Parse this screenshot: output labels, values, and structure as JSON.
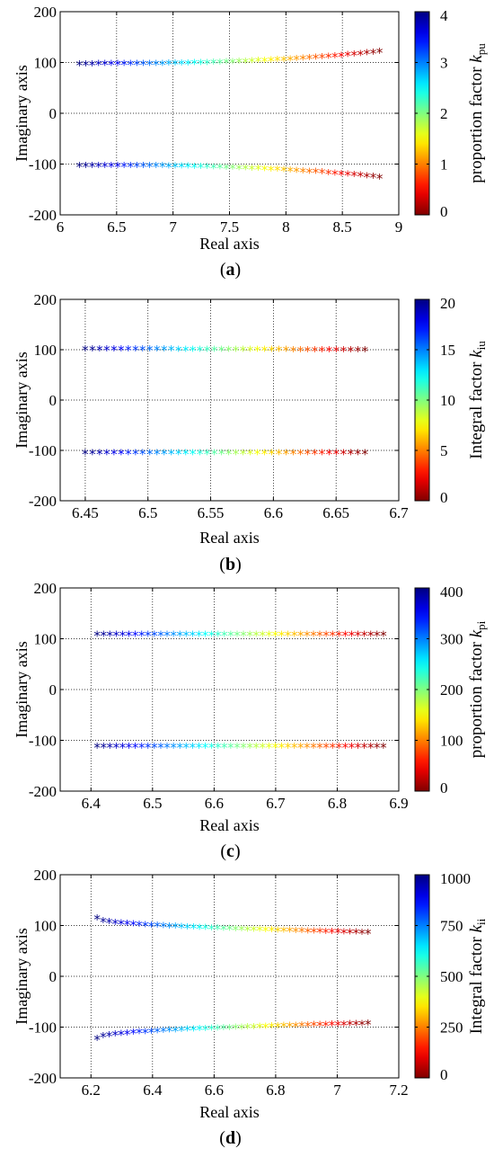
{
  "colormap": "jet",
  "colormap_stops": [
    "#00008f",
    "#0000ff",
    "#00ffff",
    "#ffff00",
    "#ff0000",
    "#800000"
  ],
  "chart_data": [
    {
      "type": "scatter",
      "panel_label": "(a)",
      "panel_letter": "a",
      "xlabel": "Real axis",
      "ylabel": "Imaginary axis",
      "xlim": [
        6,
        9
      ],
      "ylim": [
        -200,
        200
      ],
      "xticks": [
        "6",
        "6.5",
        "7",
        "7.5",
        "8",
        "8.5",
        "9"
      ],
      "yticks": [
        "200",
        "100",
        "0",
        "-100",
        "-200"
      ],
      "grid": true,
      "marker": "*",
      "colorbar": {
        "label_prefix": "proportion factor ",
        "symbol": "k",
        "subscript": "pu",
        "range": [
          0,
          4
        ],
        "ticks": [
          "4",
          "3",
          "2",
          "1",
          "0"
        ]
      },
      "series": [
        {
          "x_start": 6.17,
          "x_end": 8.83,
          "count": 48,
          "shape": 2.6,
          "y_start": 96,
          "y_end": 120,
          "param_start": 4,
          "param_end": 0
        },
        {
          "x_start": 6.17,
          "x_end": 8.83,
          "count": 48,
          "shape": 2.6,
          "y_start": -104,
          "y_end": -127,
          "param_start": 4,
          "param_end": 0
        }
      ]
    },
    {
      "type": "scatter",
      "panel_label": "(b)",
      "panel_letter": "b",
      "xlabel": "Real axis",
      "ylabel": "Imaginary axis",
      "xlim": [
        6.43,
        6.7
      ],
      "ylim": [
        -200,
        200
      ],
      "xticks": [
        "6.45",
        "6.5",
        "6.55",
        "6.6",
        "6.65",
        "6.7"
      ],
      "yticks": [
        "200",
        "100",
        "0",
        "-100",
        "-200"
      ],
      "grid": true,
      "marker": "*",
      "colorbar": {
        "label_prefix": "Integral factor ",
        "symbol": "k",
        "subscript": "iu",
        "range": [
          0,
          20
        ],
        "ticks": [
          "20",
          "15",
          "10",
          "5",
          "0"
        ]
      },
      "series": [
        {
          "x_start": 6.45,
          "x_end": 6.673,
          "count": 40,
          "shape": 1.3,
          "y_start": 100,
          "y_end": 98,
          "param_start": 20,
          "param_end": 0
        },
        {
          "x_start": 6.45,
          "x_end": 6.673,
          "count": 40,
          "shape": 1.3,
          "y_start": -106,
          "y_end": -106,
          "param_start": 20,
          "param_end": 0
        }
      ]
    },
    {
      "type": "scatter",
      "panel_label": "(c)",
      "panel_letter": "c",
      "xlabel": "Real axis",
      "ylabel": "Imaginary axis",
      "xlim": [
        6.35,
        6.9
      ],
      "ylim": [
        -200,
        200
      ],
      "xticks": [
        "6.4",
        "6.5",
        "6.6",
        "6.7",
        "6.8",
        "6.9"
      ],
      "yticks": [
        "200",
        "100",
        "0",
        "-100",
        "-200"
      ],
      "grid": true,
      "marker": "*",
      "colorbar": {
        "label_prefix": "proportion factor ",
        "symbol": "k",
        "subscript": "pi",
        "range": [
          0,
          400
        ],
        "ticks": [
          "400",
          "300",
          "200",
          "100",
          "0"
        ]
      },
      "series": [
        {
          "x_start": 6.41,
          "x_end": 6.875,
          "count": 46,
          "shape": 2.2,
          "y_start": 107,
          "y_end": 107,
          "param_start": 400,
          "param_end": 0
        },
        {
          "x_start": 6.41,
          "x_end": 6.875,
          "count": 46,
          "shape": 2.2,
          "y_start": -113,
          "y_end": -113,
          "param_start": 400,
          "param_end": 0
        }
      ]
    },
    {
      "type": "scatter",
      "panel_label": "(d)",
      "panel_letter": "d",
      "xlabel": "Real axis",
      "ylabel": "Imaginary axis",
      "xlim": [
        6.1,
        7.2
      ],
      "ylim": [
        -200,
        200
      ],
      "xticks": [
        "6.2",
        "6.4",
        "6.6",
        "6.8",
        "7",
        "7.2"
      ],
      "yticks": [
        "200",
        "100",
        "0",
        "-100",
        "-200"
      ],
      "grid": true,
      "marker": "*",
      "colorbar": {
        "label_prefix": "Integral factor ",
        "symbol": "k",
        "subscript": "ii",
        "range": [
          0,
          1000
        ],
        "ticks": [
          "1000",
          "750",
          "500",
          "250",
          "0"
        ]
      },
      "series": [
        {
          "x_start": 6.22,
          "x_end": 7.1,
          "count": 46,
          "shape": 0.45,
          "y_start": 113,
          "y_end": 85,
          "param_start": 1000,
          "param_end": 0
        },
        {
          "x_start": 6.22,
          "x_end": 7.1,
          "count": 46,
          "shape": 0.45,
          "y_start": -124,
          "y_end": -94,
          "param_start": 1000,
          "param_end": 0
        }
      ]
    }
  ]
}
